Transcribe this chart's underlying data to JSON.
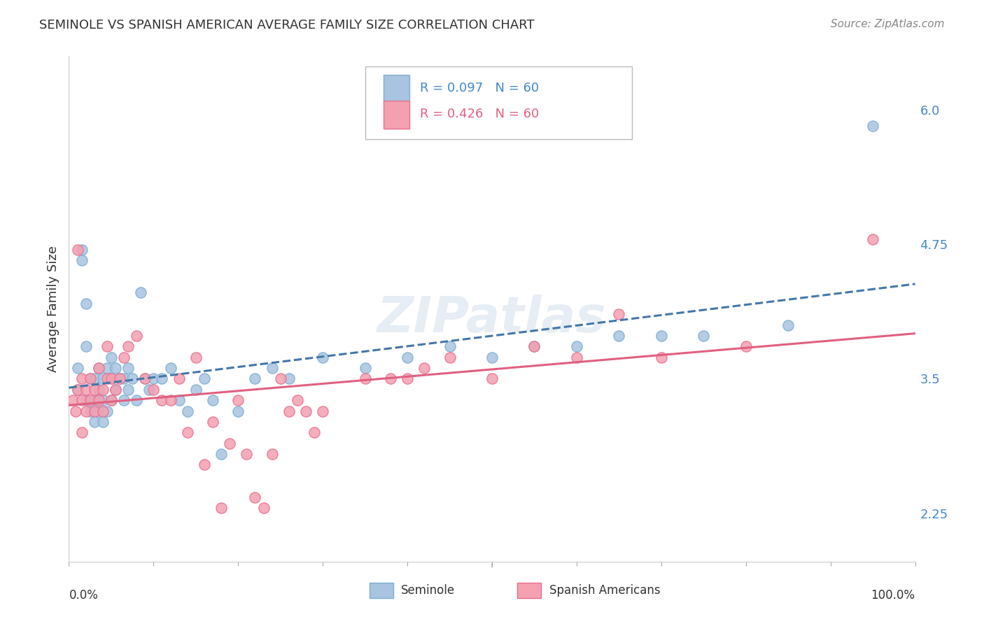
{
  "title": "SEMINOLE VS SPANISH AMERICAN AVERAGE FAMILY SIZE CORRELATION CHART",
  "source": "Source: ZipAtlas.com",
  "ylabel": "Average Family Size",
  "watermark": "ZIPatlas",
  "legend_seminole_R": 0.097,
  "legend_seminole_N": 60,
  "legend_spanish_R": 0.426,
  "legend_spanish_N": 60,
  "yticks": [
    2.25,
    3.5,
    4.75,
    6.0
  ],
  "xlim": [
    0.0,
    1.0
  ],
  "ylim": [
    1.8,
    6.5
  ],
  "background_color": "#ffffff",
  "grid_color": "#cccccc",
  "seminole_color": "#a8c4e0",
  "spanish_color": "#f4a0b0",
  "seminole_edge": "#7bafd4",
  "spanish_edge": "#e87090",
  "trend_seminole_color": "#4477aa",
  "trend_spanish_color": "#e06080",
  "seminole_x": [
    0.01,
    0.01,
    0.015,
    0.015,
    0.02,
    0.02,
    0.02,
    0.025,
    0.025,
    0.03,
    0.03,
    0.03,
    0.035,
    0.035,
    0.035,
    0.04,
    0.04,
    0.04,
    0.045,
    0.045,
    0.05,
    0.05,
    0.05,
    0.055,
    0.055,
    0.06,
    0.065,
    0.065,
    0.07,
    0.07,
    0.075,
    0.08,
    0.085,
    0.09,
    0.095,
    0.1,
    0.11,
    0.12,
    0.13,
    0.14,
    0.15,
    0.16,
    0.17,
    0.18,
    0.2,
    0.22,
    0.24,
    0.26,
    0.3,
    0.35,
    0.4,
    0.45,
    0.5,
    0.55,
    0.6,
    0.65,
    0.7,
    0.75,
    0.85,
    0.95
  ],
  "seminole_y": [
    3.4,
    3.6,
    4.6,
    4.7,
    4.2,
    3.8,
    3.3,
    3.5,
    3.2,
    3.5,
    3.3,
    3.1,
    3.6,
    3.4,
    3.2,
    3.5,
    3.3,
    3.1,
    3.6,
    3.2,
    3.7,
    3.5,
    3.3,
    3.6,
    3.4,
    3.5,
    3.5,
    3.3,
    3.6,
    3.4,
    3.5,
    3.3,
    4.3,
    3.5,
    3.4,
    3.5,
    3.5,
    3.6,
    3.3,
    3.2,
    3.4,
    3.5,
    3.3,
    2.8,
    3.2,
    3.5,
    3.6,
    3.5,
    3.7,
    3.6,
    3.7,
    3.8,
    3.7,
    3.8,
    3.8,
    3.9,
    3.9,
    3.9,
    4.0,
    5.85
  ],
  "spanish_x": [
    0.005,
    0.008,
    0.01,
    0.01,
    0.015,
    0.015,
    0.015,
    0.02,
    0.02,
    0.025,
    0.025,
    0.03,
    0.03,
    0.035,
    0.035,
    0.04,
    0.04,
    0.045,
    0.045,
    0.05,
    0.05,
    0.055,
    0.06,
    0.065,
    0.07,
    0.08,
    0.09,
    0.1,
    0.11,
    0.12,
    0.13,
    0.14,
    0.15,
    0.16,
    0.17,
    0.18,
    0.19,
    0.2,
    0.21,
    0.22,
    0.23,
    0.24,
    0.25,
    0.26,
    0.27,
    0.28,
    0.29,
    0.3,
    0.35,
    0.38,
    0.4,
    0.42,
    0.45,
    0.5,
    0.55,
    0.6,
    0.65,
    0.7,
    0.8,
    0.95
  ],
  "spanish_y": [
    3.3,
    3.2,
    4.7,
    3.4,
    3.5,
    3.3,
    3.0,
    3.4,
    3.2,
    3.5,
    3.3,
    3.4,
    3.2,
    3.6,
    3.3,
    3.4,
    3.2,
    3.8,
    3.5,
    3.5,
    3.3,
    3.4,
    3.5,
    3.7,
    3.8,
    3.9,
    3.5,
    3.4,
    3.3,
    3.3,
    3.5,
    3.0,
    3.7,
    2.7,
    3.1,
    2.3,
    2.9,
    3.3,
    2.8,
    2.4,
    2.3,
    2.8,
    3.5,
    3.2,
    3.3,
    3.2,
    3.0,
    3.2,
    3.5,
    3.5,
    3.5,
    3.6,
    3.7,
    3.5,
    3.8,
    3.7,
    4.1,
    3.7,
    3.8,
    4.8
  ]
}
